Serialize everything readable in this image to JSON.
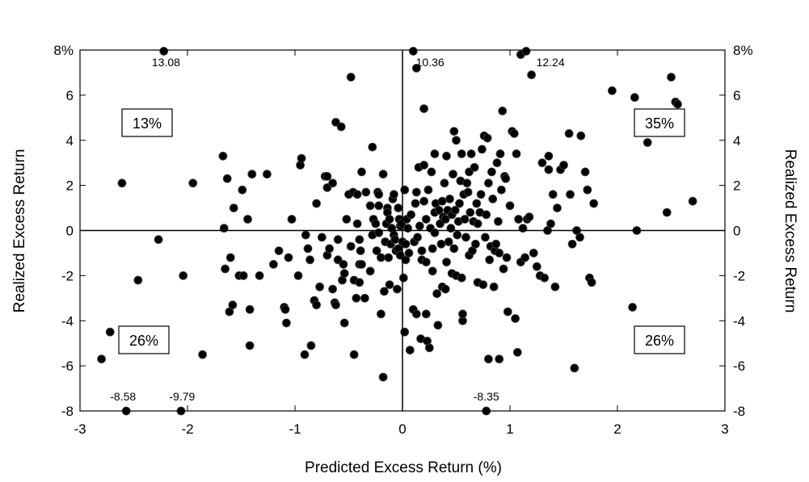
{
  "chart_data": {
    "type": "scatter",
    "title": "",
    "xlabel": "Predicted Excess Return (%)",
    "ylabel": "Realized Excess Return",
    "ylabel_right": "Realized Excess Return",
    "xlim": [
      -3,
      3
    ],
    "ylim": [
      -8,
      8
    ],
    "x_ticks": [
      -3,
      -2,
      -1,
      0,
      1,
      2,
      3
    ],
    "x_tick_labels": [
      "-3",
      "-2",
      "-1",
      "0",
      "1",
      "2",
      "3"
    ],
    "y_ticks": [
      -8,
      -6,
      -4,
      -2,
      0,
      2,
      4,
      6,
      8
    ],
    "y_tick_labels": [
      "-8",
      "-6",
      "-4",
      "-2",
      "0",
      "2",
      "4",
      "6",
      "8%"
    ],
    "grid": false,
    "quadrant_lines": true,
    "marker_color": "#000000",
    "quadrant_labels": [
      {
        "quadrant": "top-left",
        "text": "13%"
      },
      {
        "quadrant": "top-right",
        "text": "35%"
      },
      {
        "quadrant": "bottom-left",
        "text": "26%"
      },
      {
        "quadrant": "bottom-right",
        "text": "26%"
      }
    ],
    "outlier_labels": [
      {
        "x": -2.2,
        "y": 8,
        "text": "13.08"
      },
      {
        "x": 0.08,
        "y": 8,
        "text": "10.36"
      },
      {
        "x": 1.2,
        "y": 8,
        "text": "12.24"
      },
      {
        "x": -2.6,
        "y": -8,
        "text": "-8.58"
      },
      {
        "x": -2.05,
        "y": -8,
        "text": "-9.79"
      },
      {
        "x": 0.78,
        "y": -8,
        "text": "-8.35"
      }
    ],
    "points": [
      [
        -2.8,
        -5.7
      ],
      [
        -2.72,
        -4.5
      ],
      [
        -2.61,
        2.1
      ],
      [
        -2.57,
        -8.0
      ],
      [
        -2.46,
        -2.2
      ],
      [
        -2.27,
        -0.4
      ],
      [
        -2.22,
        7.95
      ],
      [
        -2.06,
        -8.0
      ],
      [
        -2.04,
        -2.0
      ],
      [
        -1.95,
        2.1
      ],
      [
        -1.86,
        -5.5
      ],
      [
        -1.67,
        3.3
      ],
      [
        -1.66,
        0.1
      ],
      [
        -1.65,
        -1.7
      ],
      [
        -1.63,
        2.3
      ],
      [
        -1.61,
        -3.6
      ],
      [
        -1.6,
        -1.2
      ],
      [
        -1.58,
        -3.3
      ],
      [
        -1.57,
        1.0
      ],
      [
        -1.52,
        -2.0
      ],
      [
        -1.49,
        1.8
      ],
      [
        -1.48,
        -2.0
      ],
      [
        -1.44,
        0.5
      ],
      [
        -1.42,
        -3.5
      ],
      [
        -1.42,
        -5.1
      ],
      [
        -1.4,
        2.5
      ],
      [
        -1.33,
        -2.0
      ],
      [
        -1.26,
        2.5
      ],
      [
        -1.2,
        -1.5
      ],
      [
        -1.15,
        -0.9
      ],
      [
        -1.1,
        -3.4
      ],
      [
        -1.09,
        -3.5
      ],
      [
        -1.08,
        -4.1
      ],
      [
        -1.06,
        -1.2
      ],
      [
        -1.03,
        0.5
      ],
      [
        -0.97,
        -2.0
      ],
      [
        -0.95,
        2.9
      ],
      [
        -0.94,
        3.2
      ],
      [
        -0.91,
        -5.5
      ],
      [
        -0.9,
        -0.2
      ],
      [
        -0.88,
        -0.8
      ],
      [
        -0.86,
        -1.3
      ],
      [
        -0.85,
        -5.1
      ],
      [
        -0.82,
        -3.1
      ],
      [
        -0.8,
        -3.3
      ],
      [
        -0.8,
        1.2
      ],
      [
        -0.77,
        -2.5
      ],
      [
        -0.75,
        -0.3
      ],
      [
        -0.72,
        2.4
      ],
      [
        -0.7,
        2.4
      ],
      [
        -0.7,
        1.9
      ],
      [
        -0.7,
        -1.1
      ],
      [
        -0.68,
        -0.8
      ],
      [
        -0.65,
        2.1
      ],
      [
        -0.65,
        -2.6
      ],
      [
        -0.63,
        -3.2
      ],
      [
        -0.62,
        -3.3
      ],
      [
        -0.62,
        4.8
      ],
      [
        -0.6,
        -0.4
      ],
      [
        -0.6,
        -1.3
      ],
      [
        -0.57,
        4.6
      ],
      [
        -0.56,
        -2.2
      ],
      [
        -0.55,
        -1.5
      ],
      [
        -0.54,
        -1.9
      ],
      [
        -0.54,
        -4.1
      ],
      [
        -0.52,
        0.5
      ],
      [
        -0.5,
        1.6
      ],
      [
        -0.48,
        -0.7
      ],
      [
        -0.48,
        6.8
      ],
      [
        -0.46,
        1.7
      ],
      [
        -0.45,
        -2.2
      ],
      [
        -0.45,
        -5.5
      ],
      [
        -0.43,
        -3.0
      ],
      [
        -0.42,
        0.3
      ],
      [
        -0.42,
        1.6
      ],
      [
        -0.4,
        -1.5
      ],
      [
        -0.4,
        -2.3
      ],
      [
        -0.4,
        -0.4
      ],
      [
        -0.39,
        -0.9
      ],
      [
        -0.38,
        2.6
      ],
      [
        -0.38,
        -1.5
      ],
      [
        -0.35,
        -3.0
      ],
      [
        -0.34,
        1.7
      ],
      [
        -0.3,
        1.1
      ],
      [
        -0.3,
        -1.8
      ],
      [
        -0.28,
        3.7
      ],
      [
        -0.28,
        -0.2
      ],
      [
        -0.27,
        0.5
      ],
      [
        -0.25,
        0.3
      ],
      [
        -0.24,
        -0.9
      ],
      [
        -0.23,
        1.7
      ],
      [
        -0.22,
        1.6
      ],
      [
        -0.22,
        -0.1
      ],
      [
        -0.22,
        1.1
      ],
      [
        -0.2,
        -3.7
      ],
      [
        -0.2,
        -1.2
      ],
      [
        -0.18,
        2.5
      ],
      [
        -0.18,
        -6.5
      ],
      [
        -0.17,
        -2.7
      ],
      [
        -0.16,
        -0.5
      ],
      [
        -0.15,
        0.3
      ],
      [
        -0.14,
        1.0
      ],
      [
        -0.14,
        0.8
      ],
      [
        -0.13,
        -1.2
      ],
      [
        -0.12,
        0.5
      ],
      [
        -0.12,
        -2.4
      ],
      [
        -0.11,
        -0.6
      ],
      [
        -0.1,
        0.1
      ],
      [
        -0.09,
        1.4
      ],
      [
        -0.08,
        1.6
      ],
      [
        -0.08,
        -0.2
      ],
      [
        -0.07,
        -0.4
      ],
      [
        -0.06,
        -0.9
      ],
      [
        -0.05,
        -2.6
      ],
      [
        -0.04,
        -0.8
      ],
      [
        -0.04,
        1.0
      ],
      [
        -0.03,
        0.5
      ],
      [
        -0.02,
        0.2
      ],
      [
        -0.02,
        -1.1
      ],
      [
        -0.01,
        0.3
      ],
      [
        0.0,
        -0.5
      ],
      [
        0.01,
        -2.1
      ],
      [
        0.02,
        -4.5
      ],
      [
        0.02,
        1.8
      ],
      [
        0.03,
        -1.3
      ],
      [
        0.03,
        -0.6
      ],
      [
        0.04,
        0.5
      ],
      [
        0.05,
        0.1
      ],
      [
        0.06,
        -1.0
      ],
      [
        0.07,
        -5.3
      ],
      [
        0.08,
        0.7
      ],
      [
        0.1,
        7.95
      ],
      [
        0.1,
        -3.5
      ],
      [
        0.11,
        -0.5
      ],
      [
        0.12,
        1.2
      ],
      [
        0.13,
        -3.7
      ],
      [
        0.13,
        1.7
      ],
      [
        0.13,
        7.2
      ],
      [
        0.14,
        -0.3
      ],
      [
        0.15,
        2.8
      ],
      [
        0.16,
        0.2
      ],
      [
        0.17,
        -4.8
      ],
      [
        0.18,
        -1.3
      ],
      [
        0.18,
        -0.9
      ],
      [
        0.2,
        2.9
      ],
      [
        0.2,
        5.4
      ],
      [
        0.2,
        1.3
      ],
      [
        0.22,
        0.5
      ],
      [
        0.22,
        -1.4
      ],
      [
        0.22,
        -3.7
      ],
      [
        0.23,
        -4.9
      ],
      [
        0.24,
        1.8
      ],
      [
        0.25,
        -5.2
      ],
      [
        0.26,
        0.1
      ],
      [
        0.27,
        2.6
      ],
      [
        0.28,
        -0.8
      ],
      [
        0.28,
        -1.8
      ],
      [
        0.3,
        0.8
      ],
      [
        0.3,
        -0.1
      ],
      [
        0.3,
        3.4
      ],
      [
        0.31,
        1.2
      ],
      [
        0.32,
        -2.8
      ],
      [
        0.33,
        -4.2
      ],
      [
        0.34,
        0.9
      ],
      [
        0.35,
        0.3
      ],
      [
        0.36,
        -0.6
      ],
      [
        0.37,
        1.3
      ],
      [
        0.37,
        -2.5
      ],
      [
        0.38,
        0.6
      ],
      [
        0.39,
        2.1
      ],
      [
        0.4,
        -2.6
      ],
      [
        0.4,
        0.5
      ],
      [
        0.41,
        -1.4
      ],
      [
        0.41,
        3.3
      ],
      [
        0.42,
        0.9
      ],
      [
        0.43,
        -0.5
      ],
      [
        0.44,
        1.4
      ],
      [
        0.45,
        0.1
      ],
      [
        0.46,
        0.7
      ],
      [
        0.46,
        -1.9
      ],
      [
        0.47,
        2.5
      ],
      [
        0.48,
        4.4
      ],
      [
        0.48,
        -0.8
      ],
      [
        0.49,
        0.9
      ],
      [
        0.5,
        4.0
      ],
      [
        0.5,
        -2.0
      ],
      [
        0.51,
        -0.2
      ],
      [
        0.52,
        0.4
      ],
      [
        0.53,
        1.2
      ],
      [
        0.54,
        2.2
      ],
      [
        0.55,
        -2.1
      ],
      [
        0.55,
        3.4
      ],
      [
        0.56,
        -4.0
      ],
      [
        0.56,
        -3.7
      ],
      [
        0.57,
        1.6
      ],
      [
        0.58,
        0.5
      ],
      [
        0.59,
        -0.3
      ],
      [
        0.6,
        2.1
      ],
      [
        0.61,
        1.7
      ],
      [
        0.62,
        2.6
      ],
      [
        0.62,
        -1.1
      ],
      [
        0.63,
        0.8
      ],
      [
        0.64,
        3.4
      ],
      [
        0.65,
        -0.9
      ],
      [
        0.66,
        0.4
      ],
      [
        0.67,
        2.8
      ],
      [
        0.68,
        -0.6
      ],
      [
        0.69,
        1.2
      ],
      [
        0.7,
        0.3
      ],
      [
        0.7,
        -2.3
      ],
      [
        0.72,
        0.8
      ],
      [
        0.73,
        1.6
      ],
      [
        0.74,
        3.6
      ],
      [
        0.75,
        -2.4
      ],
      [
        0.76,
        4.2
      ],
      [
        0.77,
        -0.3
      ],
      [
        0.78,
        0.7
      ],
      [
        0.78,
        -8.0
      ],
      [
        0.79,
        4.1
      ],
      [
        0.8,
        2.1
      ],
      [
        0.8,
        -5.7
      ],
      [
        0.81,
        -1.3
      ],
      [
        0.82,
        -0.7
      ],
      [
        0.83,
        2.6
      ],
      [
        0.84,
        1.4
      ],
      [
        0.85,
        -2.5
      ],
      [
        0.86,
        -0.9
      ],
      [
        0.87,
        -0.6
      ],
      [
        0.88,
        3.0
      ],
      [
        0.89,
        0.4
      ],
      [
        0.9,
        -5.7
      ],
      [
        0.9,
        -1.0
      ],
      [
        0.91,
        3.4
      ],
      [
        0.92,
        1.8
      ],
      [
        0.93,
        5.3
      ],
      [
        0.94,
        -1.7
      ],
      [
        0.95,
        2.4
      ],
      [
        0.96,
        2.3
      ],
      [
        0.97,
        -1.2
      ],
      [
        0.98,
        -3.6
      ],
      [
        1.0,
        1.1
      ],
      [
        1.02,
        4.4
      ],
      [
        1.04,
        4.3
      ],
      [
        1.05,
        -3.9
      ],
      [
        1.06,
        3.4
      ],
      [
        1.07,
        -5.4
      ],
      [
        1.08,
        0.5
      ],
      [
        1.1,
        7.8
      ],
      [
        1.1,
        -1.4
      ],
      [
        1.12,
        0.1
      ],
      [
        1.14,
        -1.2
      ],
      [
        1.15,
        7.95
      ],
      [
        1.16,
        0.5
      ],
      [
        1.18,
        0.6
      ],
      [
        1.2,
        6.9
      ],
      [
        1.22,
        -1.0
      ],
      [
        1.25,
        -1.6
      ],
      [
        1.28,
        -2.0
      ],
      [
        1.3,
        3.0
      ],
      [
        1.32,
        -2.1
      ],
      [
        1.35,
        0.0
      ],
      [
        1.36,
        3.3
      ],
      [
        1.36,
        2.7
      ],
      [
        1.38,
        0.3
      ],
      [
        1.4,
        1.6
      ],
      [
        1.42,
        -2.5
      ],
      [
        1.44,
        1.0
      ],
      [
        1.47,
        2.7
      ],
      [
        1.5,
        2.9
      ],
      [
        1.55,
        4.3
      ],
      [
        1.56,
        1.6
      ],
      [
        1.58,
        -0.6
      ],
      [
        1.6,
        -6.1
      ],
      [
        1.62,
        0.0
      ],
      [
        1.65,
        -0.3
      ],
      [
        1.66,
        4.2
      ],
      [
        1.7,
        2.6
      ],
      [
        1.72,
        1.8
      ],
      [
        1.74,
        -2.1
      ],
      [
        1.76,
        -2.3
      ],
      [
        1.78,
        1.2
      ],
      [
        1.95,
        6.2
      ],
      [
        2.14,
        -3.4
      ],
      [
        2.16,
        5.9
      ],
      [
        2.18,
        0.0
      ],
      [
        2.28,
        3.9
      ],
      [
        2.46,
        0.8
      ],
      [
        2.5,
        6.8
      ],
      [
        2.54,
        5.7
      ],
      [
        2.56,
        5.6
      ],
      [
        2.7,
        1.3
      ]
    ]
  }
}
